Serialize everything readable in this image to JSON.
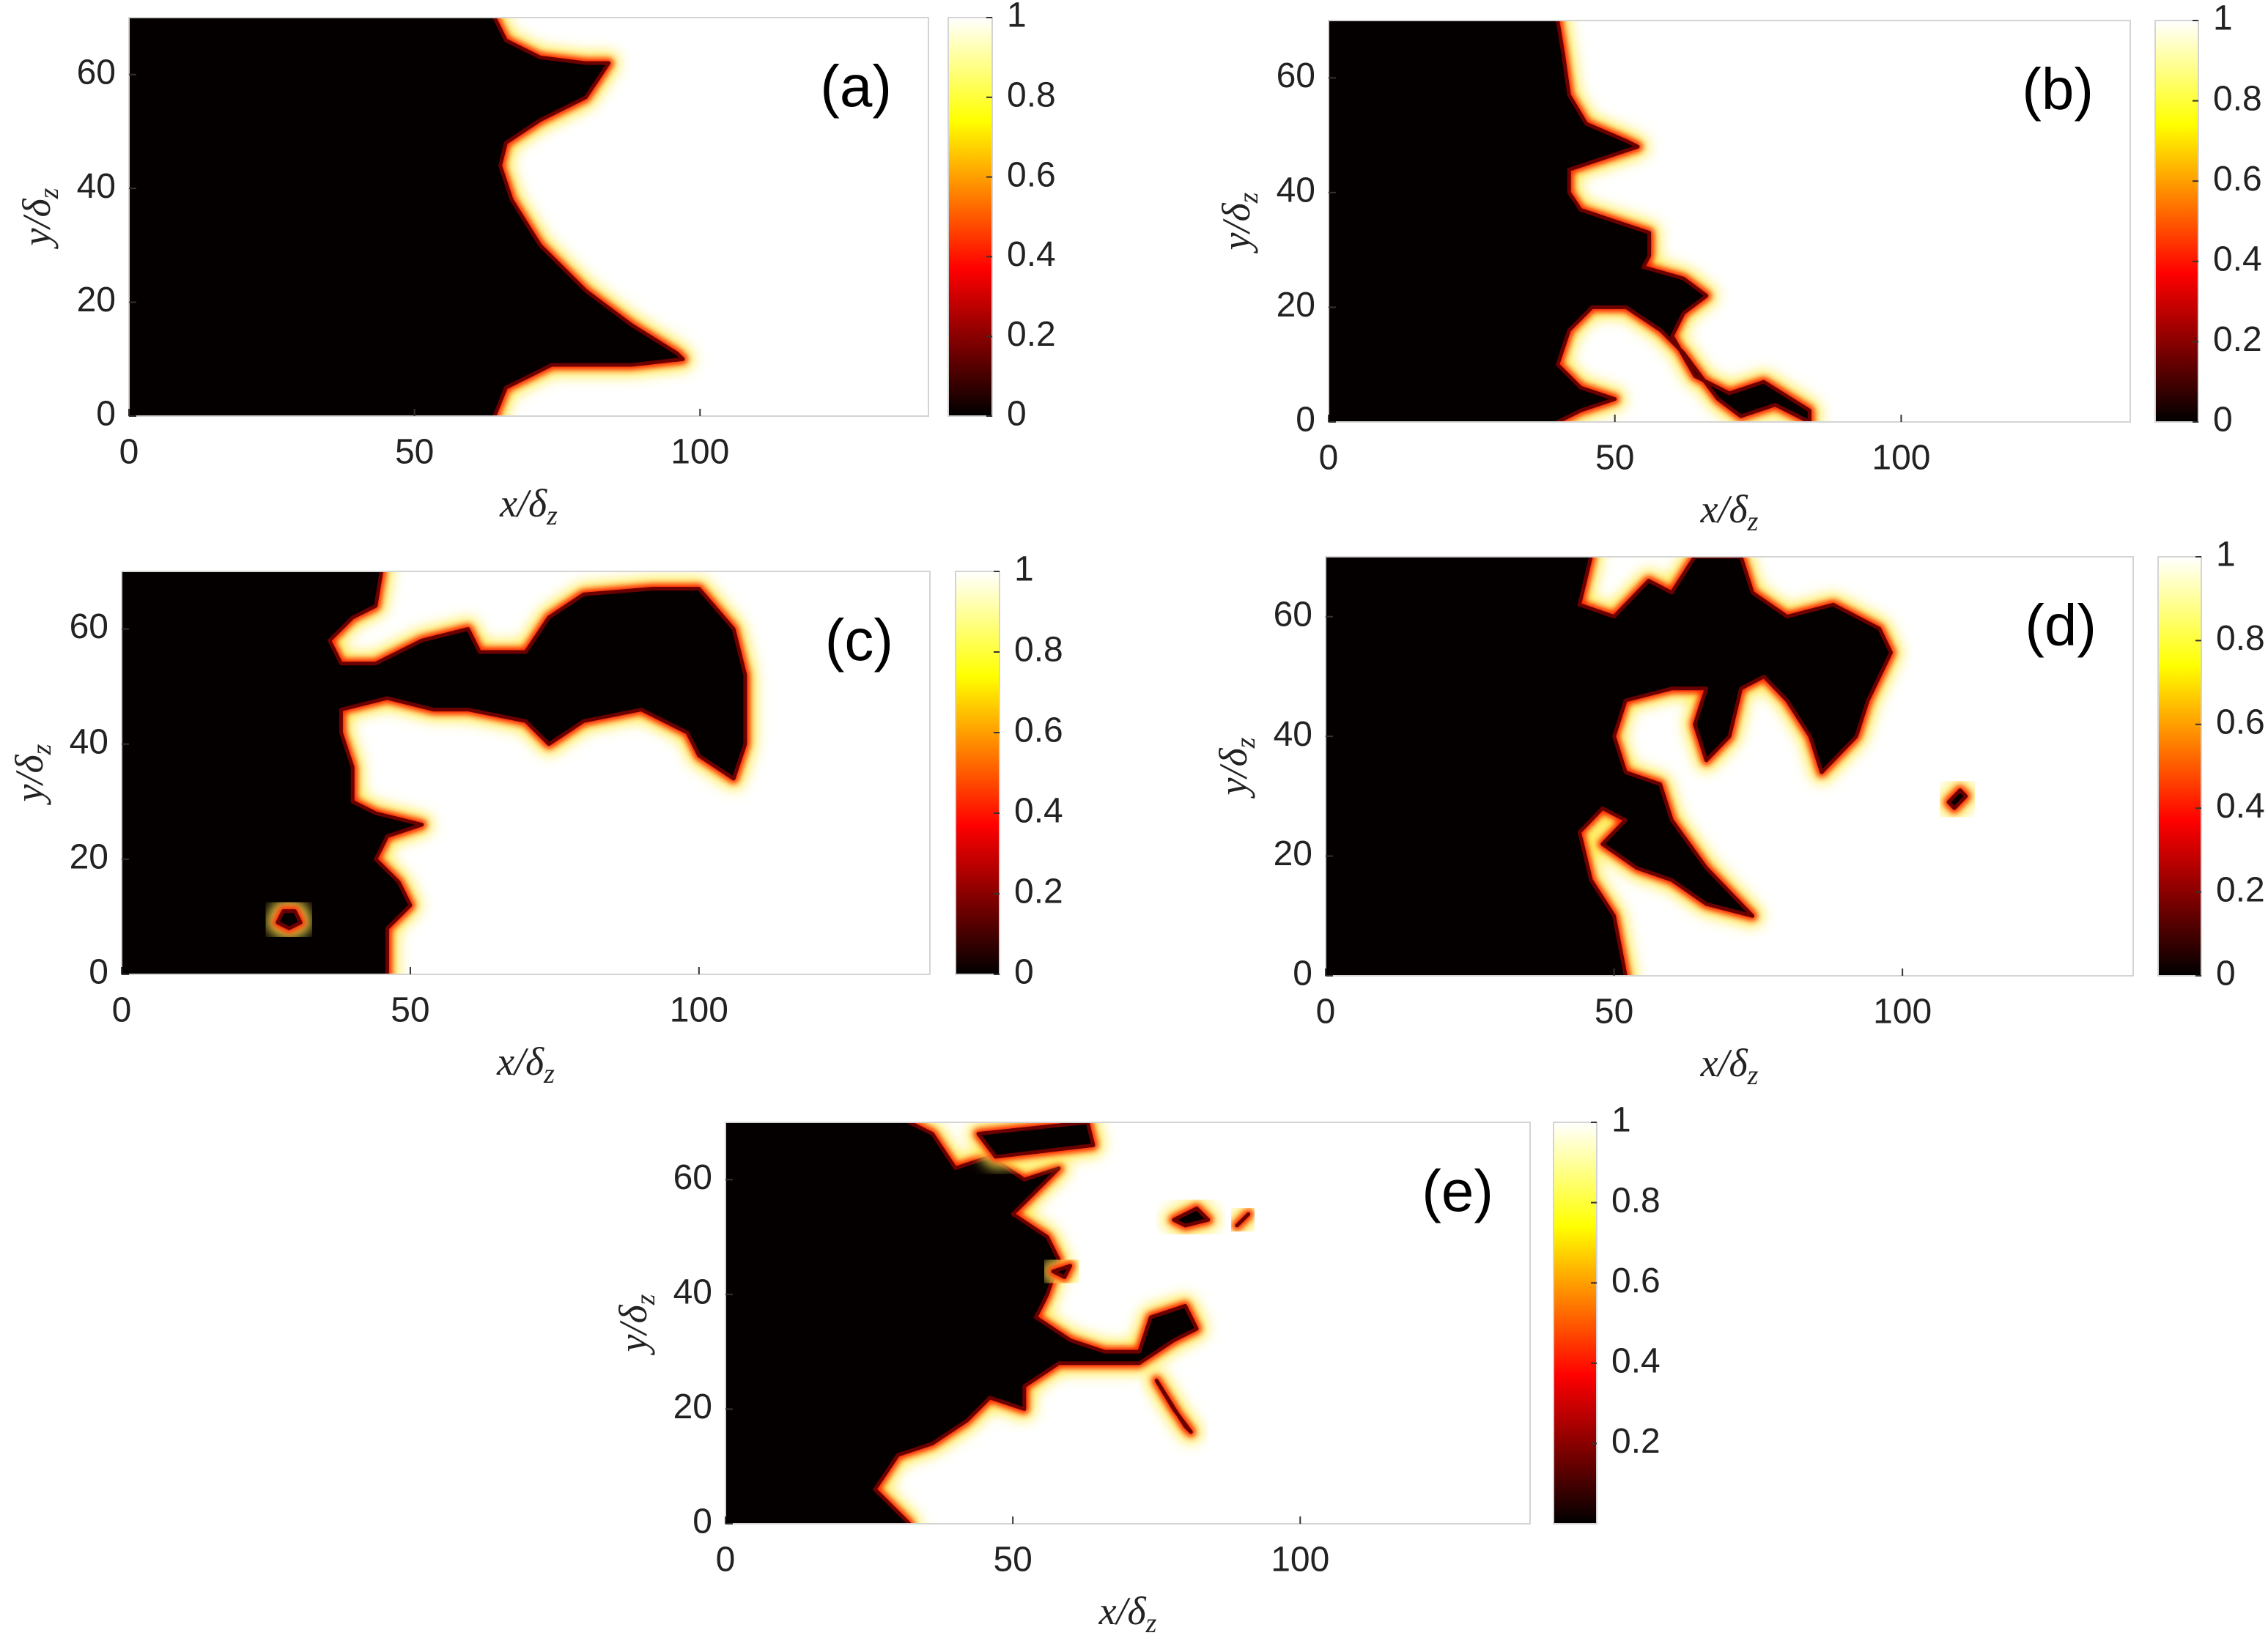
{
  "chart_data": [
    {
      "type": "heatmap",
      "label": "(a)",
      "xlabel": {
        "main": "x/δ",
        "sub": "z"
      },
      "ylabel": {
        "main": "y/δ",
        "sub": "z"
      },
      "xlim": [
        0,
        140
      ],
      "ylim": [
        0,
        70
      ],
      "xticks": [
        0,
        50,
        100
      ],
      "yticks": [
        0,
        20,
        40,
        60
      ],
      "colormap": "hot",
      "clim": [
        0,
        1
      ],
      "cticks": [
        0,
        0.2,
        0.4,
        0.6,
        0.8,
        1
      ],
      "front": {
        "x": [
          64,
          66,
          72,
          80,
          84,
          80,
          72,
          66,
          65,
          67,
          72,
          80,
          88,
          96,
          97,
          88,
          74,
          66,
          64
        ],
        "y": [
          70,
          66,
          63,
          62,
          62,
          56,
          52,
          48,
          44,
          38,
          30,
          22,
          16,
          11,
          10,
          9,
          9,
          5,
          0
        ]
      },
      "islands": []
    },
    {
      "type": "heatmap",
      "label": "(b)",
      "xlabel": {
        "main": "x/δ",
        "sub": "z"
      },
      "ylabel": {
        "main": "y/δ",
        "sub": "z"
      },
      "xlim": [
        0,
        140
      ],
      "ylim": [
        0,
        70
      ],
      "xticks": [
        0,
        50,
        100
      ],
      "yticks": [
        0,
        20,
        40,
        60
      ],
      "colormap": "hot",
      "clim": [
        0,
        1
      ],
      "cticks": [
        0,
        0.2,
        0.4,
        0.6,
        0.8,
        1
      ],
      "front": {
        "x": [
          40,
          41,
          42,
          45,
          52,
          54,
          48,
          42,
          42,
          44,
          50,
          56,
          56,
          55,
          62,
          66,
          62,
          60,
          64,
          70,
          76,
          84,
          84,
          78,
          72,
          68,
          62,
          58,
          52,
          46,
          42,
          40,
          44,
          50,
          44,
          40
        ],
        "y": [
          70,
          64,
          57,
          52,
          49,
          48,
          46,
          44,
          40,
          37,
          35,
          33,
          29,
          27,
          25,
          22,
          19,
          15,
          8,
          5,
          7,
          2,
          0,
          3,
          1,
          4,
          12,
          16,
          20,
          20,
          16,
          10,
          6,
          4,
          2,
          0
        ]
      },
      "islands": []
    },
    {
      "type": "heatmap",
      "label": "(c)",
      "xlabel": {
        "main": "x/δ",
        "sub": "z"
      },
      "ylabel": {
        "main": "y/δ",
        "sub": "z"
      },
      "xlim": [
        0,
        140
      ],
      "ylim": [
        0,
        70
      ],
      "xticks": [
        0,
        50,
        100
      ],
      "yticks": [
        0,
        20,
        40,
        60
      ],
      "colormap": "hot",
      "clim": [
        0,
        1
      ],
      "cticks": [
        0,
        0.2,
        0.4,
        0.6,
        0.8,
        1
      ],
      "front": {
        "x": [
          45,
          44,
          40,
          36,
          38,
          44,
          52,
          60,
          62,
          70,
          74,
          80,
          92,
          100,
          106,
          108,
          108,
          106,
          100,
          98,
          90,
          80,
          74,
          70,
          60,
          54,
          46,
          38,
          38,
          40,
          40,
          44,
          52,
          46,
          44,
          48,
          50,
          46,
          46
        ],
        "y": [
          70,
          64,
          62,
          58,
          54,
          54,
          58,
          60,
          56,
          56,
          62,
          66,
          67,
          67,
          60,
          52,
          40,
          34,
          38,
          42,
          46,
          44,
          40,
          44,
          46,
          46,
          48,
          46,
          42,
          36,
          30,
          28,
          26,
          24,
          20,
          16,
          12,
          8,
          0
        ]
      },
      "islands": [
        {
          "x": [
            28,
            30,
            31,
            29,
            27
          ],
          "y": [
            11,
            11,
            9,
            8,
            9
          ]
        }
      ]
    },
    {
      "type": "heatmap",
      "label": "(d)",
      "xlabel": {
        "main": "x/δ",
        "sub": "z"
      },
      "ylabel": {
        "main": "y/δ",
        "sub": "z"
      },
      "xlim": [
        0,
        140
      ],
      "ylim": [
        0,
        70
      ],
      "xticks": [
        0,
        50,
        100
      ],
      "yticks": [
        0,
        20,
        40,
        60
      ],
      "colormap": "hot",
      "clim": [
        0,
        1
      ],
      "cticks": [
        0,
        0.2,
        0.4,
        0.6,
        0.8,
        1
      ],
      "front": {
        "x": [
          46,
          44,
          50,
          56,
          60,
          64,
          72,
          74,
          80,
          88,
          96,
          98,
          94,
          92,
          86,
          84,
          80,
          76,
          72,
          70,
          66,
          64,
          66,
          60,
          52,
          50,
          52,
          58,
          60,
          66,
          74,
          66,
          60,
          54,
          48,
          52,
          48,
          44,
          46,
          50,
          52
        ],
        "y": [
          70,
          62,
          60,
          66,
          64,
          70,
          70,
          64,
          60,
          62,
          58,
          54,
          46,
          40,
          34,
          40,
          46,
          50,
          48,
          40,
          36,
          42,
          48,
          48,
          46,
          40,
          34,
          32,
          26,
          18,
          10,
          12,
          16,
          18,
          22,
          26,
          28,
          24,
          16,
          10,
          0
        ]
      },
      "islands": [
        {
          "x": [
            108,
            110,
            111,
            109
          ],
          "y": [
            29,
            31,
            30,
            28
          ]
        }
      ]
    },
    {
      "type": "heatmap",
      "label": "(e)",
      "xlabel": {
        "main": "x/δ",
        "sub": "z"
      },
      "ylabel": {
        "main": "y/δ",
        "sub": "z"
      },
      "xlim": [
        0,
        140
      ],
      "ylim": [
        0,
        70
      ],
      "xticks": [
        0,
        50,
        100
      ],
      "yticks": [
        0,
        20,
        40,
        60
      ],
      "colormap": "hot",
      "clim": [
        0,
        1
      ],
      "cticks": [
        0.2,
        0.4,
        0.6,
        0.8,
        1
      ],
      "front": {
        "x": [
          32,
          36,
          40,
          46,
          52,
          58,
          54,
          50,
          56,
          58,
          56,
          54,
          60,
          66,
          72,
          74,
          80,
          82,
          78,
          72,
          64,
          58,
          52,
          52,
          46,
          42,
          36,
          30,
          26,
          32
        ],
        "y": [
          70,
          68,
          62,
          64,
          60,
          62,
          58,
          54,
          50,
          46,
          40,
          36,
          32,
          30,
          30,
          36,
          38,
          34,
          32,
          28,
          28,
          28,
          24,
          20,
          22,
          18,
          14,
          12,
          6,
          0
        ]
      },
      "islands": [
        {
          "x": [
            78,
            82,
            84,
            80
          ],
          "y": [
            53,
            55,
            53,
            52
          ]
        },
        {
          "x": [
            89,
            91,
            90
          ],
          "y": [
            52,
            54,
            53
          ]
        },
        {
          "x": [
            75,
            80,
            81,
            78
          ],
          "y": [
            25,
            17,
            16,
            20
          ]
        },
        {
          "x": [
            57,
            60,
            59
          ],
          "y": [
            44,
            45,
            43
          ]
        },
        {
          "x": [
            44,
            63,
            64,
            47
          ],
          "y": [
            68,
            70,
            66,
            64
          ]
        }
      ]
    }
  ]
}
